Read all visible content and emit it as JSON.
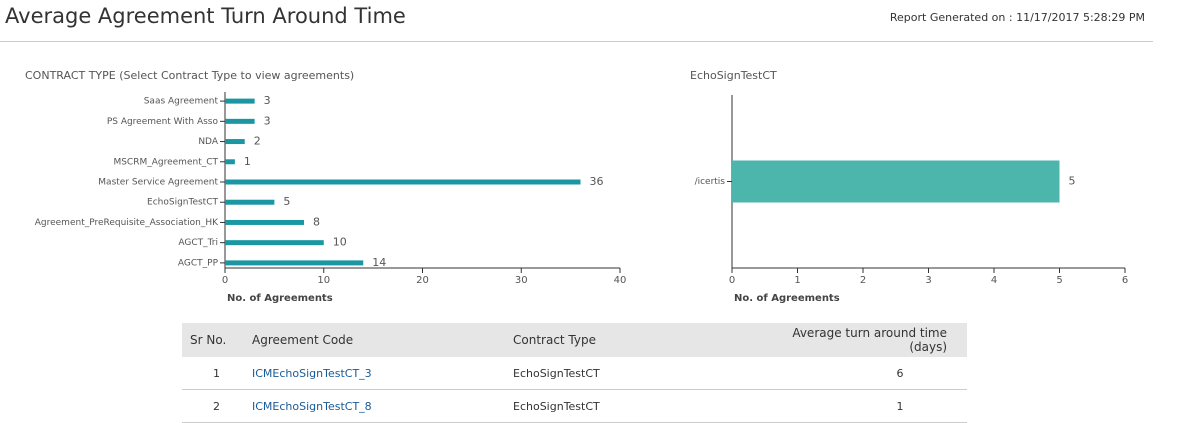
{
  "header": {
    "title": "Average Agreement Turn Around Time",
    "report_generated": "Report Generated on : 11/17/2017 5:28:29 PM"
  },
  "chart_data": [
    {
      "type": "bar",
      "orientation": "horizontal",
      "title": "CONTRACT TYPE (Select Contract Type to view agreements)",
      "x_label": "No. of Agreements",
      "categories": [
        "Saas Agreement",
        "PS Agreement With Asso",
        "NDA",
        "MSCRM_Agreement_CT",
        "Master Service Agreement",
        "EchoSignTestCT",
        "Agreement_PreRequisite_Association_HK",
        "AGCT_Tri",
        "AGCT_PP"
      ],
      "values": [
        3,
        3,
        2,
        1,
        36,
        5,
        8,
        10,
        14
      ],
      "color": "#1a97a3",
      "xlim": [
        0,
        40
      ],
      "xticks": [
        0,
        10,
        20,
        30,
        40
      ]
    },
    {
      "type": "bar",
      "orientation": "horizontal",
      "title": "EchoSignTestCT",
      "x_label": "No. of Agreements",
      "categories": [
        "/icertis"
      ],
      "values": [
        5
      ],
      "color": "#4db6ac",
      "xlim": [
        0,
        6
      ],
      "xticks": [
        0,
        1,
        2,
        3,
        4,
        5,
        6
      ]
    }
  ],
  "table": {
    "columns": [
      "Sr No.",
      "Agreement Code",
      "Contract Type",
      "Average turn around time (days)"
    ],
    "rows": [
      [
        "1",
        "ICMEchoSignTestCT_3",
        "EchoSignTestCT",
        "6"
      ],
      [
        "2",
        "ICMEchoSignTestCT_8",
        "EchoSignTestCT",
        "1"
      ]
    ]
  }
}
